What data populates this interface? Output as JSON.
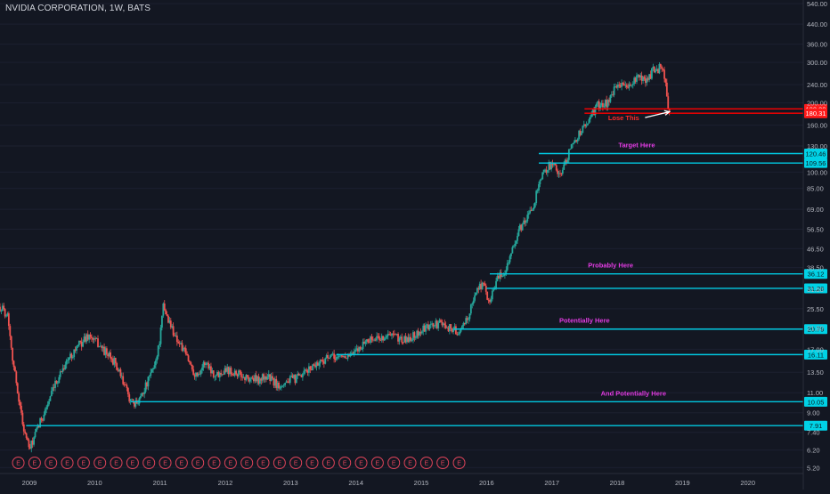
{
  "chart_data": {
    "type": "candlestick",
    "title": "NVIDIA CORPORATION, 1W, BATS",
    "scale": "log",
    "ylim": [
      4.9,
      560
    ],
    "xlim": [
      2008.6,
      2020.9
    ],
    "y_ticks": [
      "540.00",
      "440.00",
      "360.00",
      "300.00",
      "240.00",
      "200.00",
      "160.00",
      "130.00",
      "100.00",
      "85.00",
      "69.00",
      "56.50",
      "46.50",
      "38.50",
      "31.00",
      "25.50",
      "21.00",
      "17.00",
      "13.50",
      "11.00",
      "9.00",
      "7.40",
      "6.20",
      "5.20"
    ],
    "x_ticks": [
      "2009",
      "2010",
      "2011",
      "2012",
      "2013",
      "2014",
      "2015",
      "2016",
      "2017",
      "2018",
      "2019",
      "2020"
    ],
    "price_anchors": [
      [
        2008.6,
        26
      ],
      [
        2008.72,
        24
      ],
      [
        2008.8,
        15
      ],
      [
        2008.95,
        8
      ],
      [
        2009.05,
        6.2
      ],
      [
        2009.2,
        8
      ],
      [
        2009.4,
        11
      ],
      [
        2009.55,
        14
      ],
      [
        2009.75,
        17
      ],
      [
        2009.95,
        19.5
      ],
      [
        2010.1,
        18
      ],
      [
        2010.25,
        16
      ],
      [
        2010.35,
        15
      ],
      [
        2010.55,
        11
      ],
      [
        2010.65,
        9.5
      ],
      [
        2010.85,
        12
      ],
      [
        2010.98,
        15
      ],
      [
        2011.05,
        19
      ],
      [
        2011.1,
        26
      ],
      [
        2011.2,
        22
      ],
      [
        2011.3,
        19
      ],
      [
        2011.45,
        16
      ],
      [
        2011.6,
        13
      ],
      [
        2011.75,
        15
      ],
      [
        2011.9,
        13
      ],
      [
        2012.05,
        14
      ],
      [
        2012.2,
        13.5
      ],
      [
        2012.35,
        12.8
      ],
      [
        2012.55,
        12.5
      ],
      [
        2012.7,
        13
      ],
      [
        2012.85,
        11.8
      ],
      [
        2013.0,
        12.4
      ],
      [
        2013.2,
        12.8
      ],
      [
        2013.4,
        14.5
      ],
      [
        2013.6,
        15.5
      ],
      [
        2013.8,
        15.8
      ],
      [
        2014.0,
        16
      ],
      [
        2014.2,
        18.5
      ],
      [
        2014.4,
        19
      ],
      [
        2014.6,
        19.5
      ],
      [
        2014.8,
        18.5
      ],
      [
        2015.0,
        20
      ],
      [
        2015.2,
        21.5
      ],
      [
        2015.35,
        22
      ],
      [
        2015.5,
        21
      ],
      [
        2015.65,
        20
      ],
      [
        2015.8,
        25
      ],
      [
        2015.9,
        31
      ],
      [
        2016.0,
        33
      ],
      [
        2016.08,
        27
      ],
      [
        2016.2,
        34
      ],
      [
        2016.3,
        36
      ],
      [
        2016.45,
        46
      ],
      [
        2016.55,
        56
      ],
      [
        2016.65,
        62
      ],
      [
        2016.75,
        68
      ],
      [
        2016.85,
        90
      ],
      [
        2017.0,
        108
      ],
      [
        2017.1,
        105
      ],
      [
        2017.2,
        98
      ],
      [
        2017.3,
        120
      ],
      [
        2017.45,
        145
      ],
      [
        2017.6,
        165
      ],
      [
        2017.75,
        195
      ],
      [
        2017.9,
        200
      ],
      [
        2018.0,
        225
      ],
      [
        2018.1,
        245
      ],
      [
        2018.2,
        230
      ],
      [
        2018.35,
        255
      ],
      [
        2018.5,
        250
      ],
      [
        2018.6,
        275
      ],
      [
        2018.72,
        285
      ],
      [
        2018.78,
        255
      ],
      [
        2018.82,
        200
      ],
      [
        2018.86,
        185
      ]
    ],
    "horizontal_levels": [
      {
        "label": "188.30",
        "value": 188.3,
        "color": "#ff0000",
        "x_start": 2017.55
      },
      {
        "label": "180.31",
        "value": 180.31,
        "color": "#ff0000",
        "x_start": 2017.55
      },
      {
        "label": "120.46",
        "value": 120.46,
        "color": "#00c8e0",
        "x_start": 2016.85
      },
      {
        "label": "109.56",
        "value": 109.56,
        "color": "#00c8e0",
        "x_start": 2016.85
      },
      {
        "label": "36.12",
        "value": 36.12,
        "color": "#00c8e0",
        "x_start": 2016.1
      },
      {
        "label": "31.26",
        "value": 31.26,
        "color": "#00c8e0",
        "x_start": 2016.05
      },
      {
        "label": "20.79",
        "value": 20.79,
        "color": "#00c8e0",
        "x_start": 2015.55
      },
      {
        "label": "16.11",
        "value": 16.11,
        "color": "#00c8e0",
        "x_start": 2013.75
      },
      {
        "label": "10.05",
        "value": 10.05,
        "color": "#00c8e0",
        "x_start": 2010.6
      },
      {
        "label": "7.91",
        "value": 7.91,
        "color": "#00c8e0",
        "x_start": 2009.0
      }
    ],
    "annotations": [
      {
        "text": "Lose This",
        "color": "#ff2a2a",
        "x": 2018.15,
        "y": 168,
        "arrow_to": [
          2018.85,
          183
        ]
      },
      {
        "text": "Target Here",
        "color": "#e33be3",
        "x": 2018.35,
        "y": 128
      },
      {
        "text": "Probably Here",
        "color": "#e33be3",
        "x": 2017.95,
        "y": 38.5
      },
      {
        "text": "Potentially Here",
        "color": "#e33be3",
        "x": 2017.55,
        "y": 22.2
      },
      {
        "text": "And Potentially Here",
        "color": "#e33be3",
        "x": 2018.3,
        "y": 10.7
      }
    ],
    "earnings_markers": {
      "label": "E",
      "color": "#e0445a",
      "x_start": 2008.88,
      "x_step": 0.25,
      "count": 28
    },
    "colors": {
      "up": "#26a69a",
      "down": "#ef5350",
      "axis_text": "#b2b5be",
      "background": "#131722"
    }
  }
}
